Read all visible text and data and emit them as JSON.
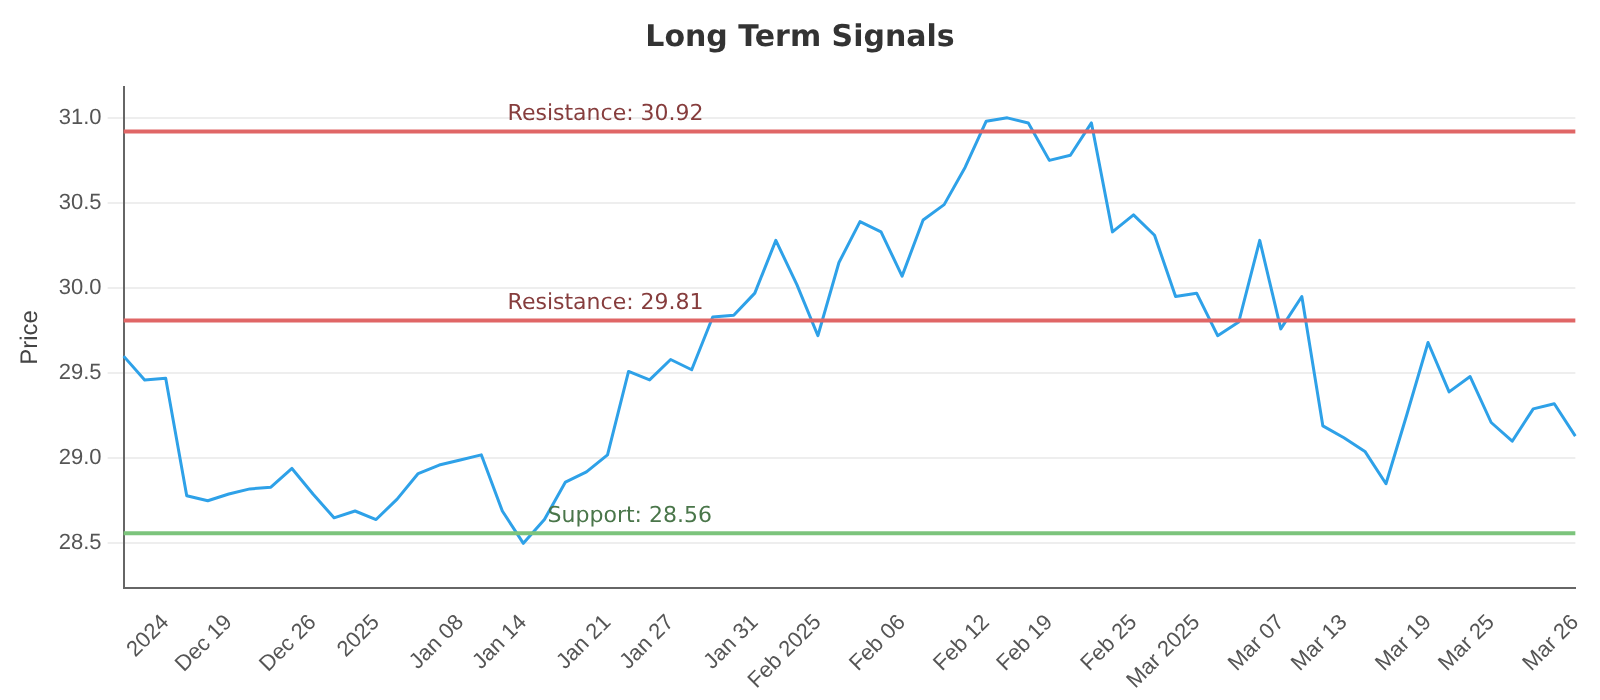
{
  "chart_data": {
    "type": "line",
    "title": "Long Term Signals",
    "ylabel": "Price",
    "categories": [
      null,
      null,
      "2024",
      null,
      null,
      "Dec 19",
      null,
      null,
      null,
      "Dec 26",
      null,
      null,
      "2025",
      null,
      null,
      null,
      "Jan 08",
      null,
      null,
      "Jan 14",
      null,
      null,
      null,
      "Jan 21",
      null,
      null,
      "Jan 27",
      null,
      null,
      null,
      "Jan 31",
      null,
      null,
      "Feb 2025",
      null,
      null,
      null,
      "Feb 06",
      null,
      null,
      null,
      "Feb 12",
      null,
      null,
      "Feb 19",
      null,
      null,
      null,
      "Feb 25",
      null,
      null,
      "Mar 2025",
      null,
      null,
      null,
      "Mar 07",
      null,
      null,
      "Mar 13",
      null,
      null,
      null,
      "Mar 19",
      null,
      null,
      "Mar 25",
      null,
      null,
      null,
      "Mar 26"
    ],
    "series": [
      {
        "color": "#2ea1e8",
        "values": [
          29.6,
          29.46,
          29.47,
          28.78,
          28.75,
          28.79,
          28.82,
          28.83,
          28.94,
          28.79,
          28.65,
          28.69,
          28.64,
          28.76,
          28.91,
          28.96,
          28.99,
          29.02,
          28.69,
          28.5,
          28.64,
          28.86,
          28.92,
          29.02,
          29.51,
          29.46,
          29.58,
          29.52,
          29.83,
          29.84,
          29.97,
          30.28,
          30.02,
          29.72,
          30.15,
          30.39,
          30.33,
          30.07,
          30.4,
          30.49,
          30.71,
          30.98,
          31.0,
          30.97,
          30.75,
          30.78,
          30.97,
          30.33,
          30.43,
          30.31,
          29.95,
          29.97,
          29.72,
          29.8,
          30.28,
          29.76,
          29.95,
          29.19,
          29.12,
          29.04,
          28.85,
          29.26,
          29.68,
          29.39,
          29.48,
          29.21,
          29.1,
          29.29,
          29.32,
          29.13
        ]
      }
    ],
    "ylim": [
      28.24,
      31.18
    ],
    "yticks": [
      28.5,
      {
        "value": 29,
        "label": "29.0"
      },
      29.5,
      {
        "value": 30,
        "label": "30.0"
      },
      30.5,
      {
        "value": 31,
        "label": "31.0"
      }
    ],
    "grid": "y",
    "legend": false,
    "marker": "none",
    "line_style": "solid",
    "ref_lines": [
      {
        "axis": "y",
        "value": 30.92,
        "label": "Resistance: 30.92",
        "color": "#e06666"
      },
      {
        "axis": "y",
        "value": 29.81,
        "label": "Resistance: 29.81",
        "color": "#e06666"
      },
      {
        "axis": "y",
        "value": 28.56,
        "label": "Support: 28.56",
        "color": "#7cc47c"
      }
    ]
  }
}
